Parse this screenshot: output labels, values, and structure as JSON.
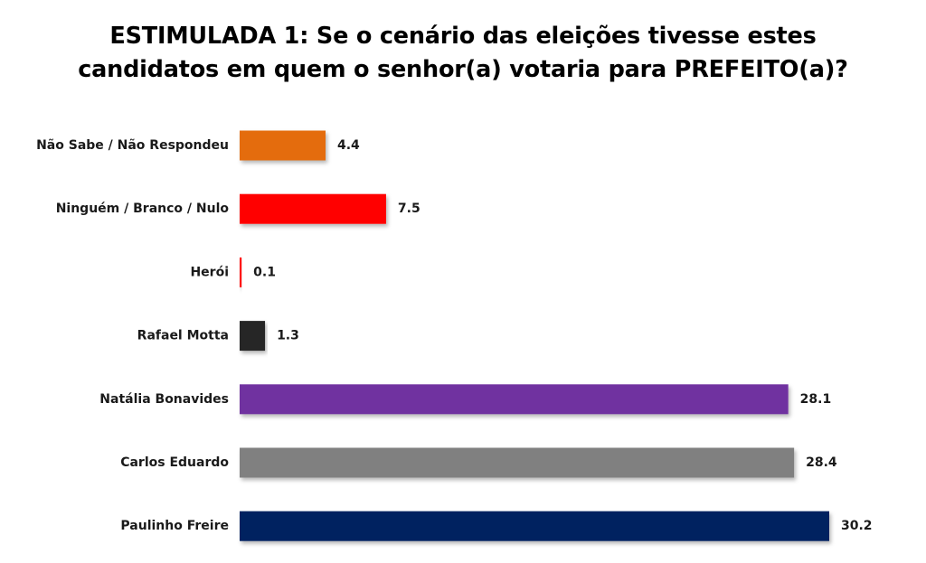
{
  "chart_data": {
    "type": "bar",
    "orientation": "horizontal",
    "title_lines": [
      "ESTIMULADA 1: Se o cenário das eleições tivesse estes",
      "candidatos em quem o senhor(a) votaria para PREFEITO(a)?"
    ],
    "categories": [
      "Não Sabe / Não Respondeu",
      "Ninguém / Branco / Nulo",
      "Herói",
      "Rafael Motta",
      "Natália Bonavides",
      "Carlos Eduardo",
      "Paulinho Freire"
    ],
    "values": [
      4.4,
      7.5,
      0.1,
      1.3,
      28.1,
      28.4,
      30.2
    ],
    "value_labels": [
      "4.4",
      "7.5",
      "0.1",
      "1.3",
      "28.1",
      "28.4",
      "30.2"
    ],
    "colors": [
      "#E46C0A",
      "#FF0000",
      "#FF0000",
      "#262626",
      "#7030A0",
      "#808080",
      "#002060"
    ],
    "xlim": [
      0,
      30.2
    ],
    "grid": false,
    "legend": "none",
    "data_labels": "outside-end"
  }
}
